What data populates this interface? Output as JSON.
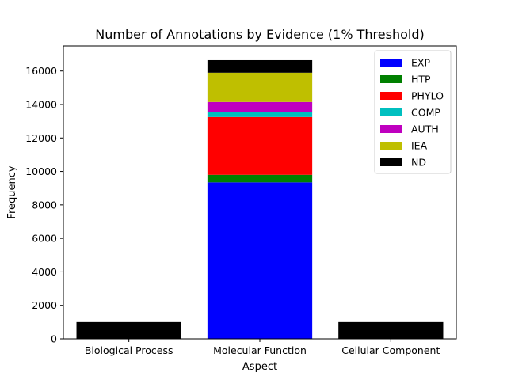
{
  "chart_data": {
    "type": "bar",
    "stacked": true,
    "title": "Number of Annotations by Evidence (1% Threshold)",
    "xlabel": "Aspect",
    "ylabel": "Frequency",
    "categories": [
      "Biological Process",
      "Molecular Function",
      "Cellular Component"
    ],
    "ylim": [
      0,
      17500
    ],
    "yticks": [
      0,
      2000,
      4000,
      6000,
      8000,
      10000,
      12000,
      14000,
      16000
    ],
    "grid": false,
    "legend_position": "top-right",
    "series": [
      {
        "name": "EXP",
        "color": "#0000ff",
        "values": [
          0,
          9350,
          0
        ]
      },
      {
        "name": "HTP",
        "color": "#008000",
        "values": [
          0,
          450,
          0
        ]
      },
      {
        "name": "PHYLO",
        "color": "#ff0000",
        "values": [
          0,
          3450,
          0
        ]
      },
      {
        "name": "COMP",
        "color": "#00bfbf",
        "values": [
          0,
          300,
          0
        ]
      },
      {
        "name": "AUTH",
        "color": "#bf00bf",
        "values": [
          0,
          600,
          0
        ]
      },
      {
        "name": "IEA",
        "color": "#bfbf00",
        "values": [
          0,
          1750,
          0
        ]
      },
      {
        "name": "ND",
        "color": "#000000",
        "values": [
          1000,
          750,
          1000
        ]
      }
    ]
  }
}
